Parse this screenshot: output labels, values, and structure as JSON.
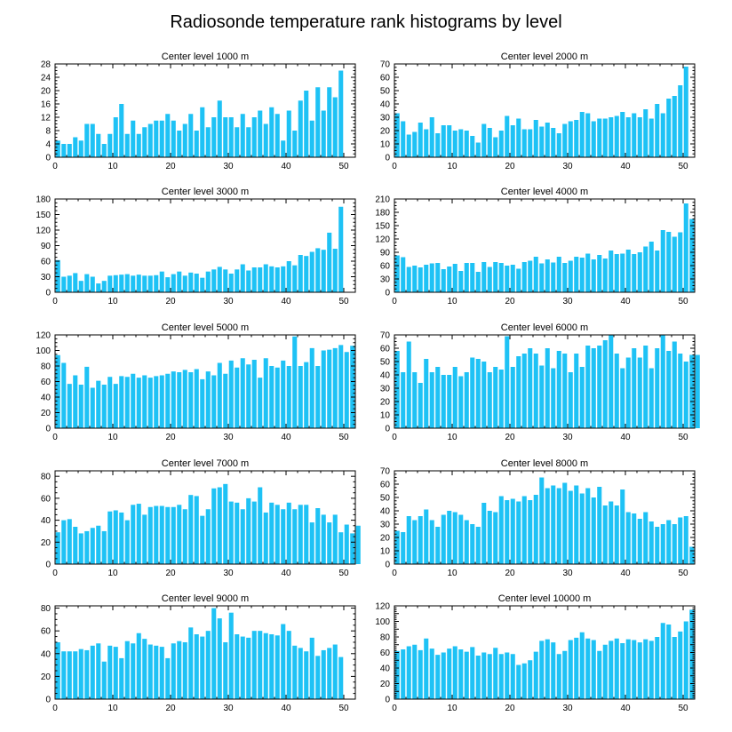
{
  "title": "Radiosonde temperature rank histograms by level",
  "colors": {
    "bar": "#1ec2f5",
    "axis": "#000000"
  },
  "chart_data": [
    {
      "type": "bar",
      "title": "Center level 1000 m",
      "xlim": [
        0,
        52
      ],
      "ylim": [
        0,
        28
      ],
      "xticks": [
        0,
        10,
        20,
        30,
        40,
        50
      ],
      "yticks": [
        0,
        4,
        8,
        12,
        16,
        20,
        24,
        28
      ],
      "values": [
        5,
        4,
        4,
        6,
        5,
        10,
        10,
        7,
        4,
        7,
        12,
        16,
        7,
        11,
        7,
        9,
        10,
        11,
        11,
        13,
        11,
        8,
        10,
        13,
        8,
        15,
        9,
        12,
        17,
        12,
        12,
        9,
        13,
        9,
        12,
        14,
        10,
        15,
        13,
        5,
        14,
        8,
        17,
        20,
        11,
        21,
        14,
        21,
        18,
        26
      ]
    },
    {
      "type": "bar",
      "title": "Center level 2000 m",
      "xlim": [
        0,
        52
      ],
      "ylim": [
        0,
        70
      ],
      "xticks": [
        0,
        10,
        20,
        30,
        40,
        50
      ],
      "yticks": [
        0,
        10,
        20,
        30,
        40,
        50,
        60,
        70
      ],
      "values": [
        33,
        27,
        17,
        19,
        26,
        21,
        30,
        18,
        24,
        24,
        20,
        21,
        20,
        16,
        11,
        25,
        22,
        15,
        20,
        31,
        24,
        29,
        21,
        21,
        28,
        23,
        26,
        22,
        18,
        25,
        27,
        28,
        34,
        33,
        27,
        29,
        29,
        30,
        31,
        34,
        30,
        33,
        30,
        36,
        29,
        40,
        33,
        44,
        46,
        54,
        68
      ]
    },
    {
      "type": "bar",
      "title": "Center level 3000 m",
      "xlim": [
        0,
        52
      ],
      "ylim": [
        0,
        180
      ],
      "xticks": [
        0,
        10,
        20,
        30,
        40,
        50
      ],
      "yticks": [
        0,
        30,
        60,
        90,
        120,
        150,
        180
      ],
      "values": [
        62,
        30,
        32,
        37,
        22,
        35,
        30,
        17,
        22,
        32,
        33,
        34,
        35,
        32,
        34,
        32,
        32,
        33,
        40,
        29,
        35,
        40,
        32,
        38,
        36,
        28,
        40,
        44,
        49,
        44,
        36,
        44,
        54,
        42,
        48,
        48,
        54,
        50,
        48,
        50,
        60,
        52,
        72,
        70,
        78,
        85,
        82,
        115,
        84,
        165
      ]
    },
    {
      "type": "bar",
      "title": "Center level 4000 m",
      "xlim": [
        0,
        52
      ],
      "ylim": [
        0,
        210
      ],
      "xticks": [
        0,
        10,
        20,
        30,
        40,
        50
      ],
      "yticks": [
        0,
        30,
        60,
        90,
        120,
        150,
        180,
        210
      ],
      "values": [
        83,
        79,
        57,
        60,
        56,
        62,
        65,
        66,
        52,
        58,
        64,
        48,
        66,
        66,
        46,
        68,
        57,
        68,
        66,
        60,
        62,
        53,
        68,
        71,
        80,
        65,
        74,
        67,
        80,
        66,
        71,
        80,
        78,
        87,
        74,
        84,
        76,
        94,
        86,
        87,
        96,
        86,
        90,
        103,
        114,
        94,
        140,
        136,
        125,
        135,
        200,
        165
      ]
    },
    {
      "type": "bar",
      "title": "Center level 5000 m",
      "xlim": [
        0,
        52
      ],
      "ylim": [
        0,
        120
      ],
      "xticks": [
        0,
        10,
        20,
        30,
        40,
        50
      ],
      "yticks": [
        0,
        20,
        40,
        60,
        80,
        100,
        120
      ],
      "values": [
        94,
        84,
        57,
        68,
        56,
        79,
        52,
        61,
        56,
        66,
        57,
        67,
        66,
        70,
        65,
        68,
        65,
        67,
        68,
        70,
        73,
        72,
        75,
        72,
        76,
        63,
        73,
        68,
        84,
        70,
        87,
        78,
        90,
        82,
        88,
        65,
        90,
        80,
        78,
        87,
        80,
        118,
        80,
        85,
        103,
        80,
        100,
        101,
        103,
        107,
        98,
        106
      ]
    },
    {
      "type": "bar",
      "title": "Center level 6000 m",
      "xlim": [
        0,
        52
      ],
      "ylim": [
        0,
        70
      ],
      "xticks": [
        0,
        10,
        20,
        30,
        40,
        50
      ],
      "yticks": [
        0,
        10,
        20,
        30,
        40,
        50,
        60,
        70
      ],
      "values": [
        58,
        42,
        65,
        42,
        34,
        52,
        42,
        46,
        40,
        40,
        46,
        39,
        42,
        53,
        52,
        50,
        42,
        46,
        44,
        69,
        46,
        54,
        56,
        60,
        56,
        47,
        60,
        45,
        58,
        56,
        42,
        56,
        46,
        62,
        60,
        62,
        66,
        70,
        56,
        45,
        53,
        60,
        53,
        62,
        45,
        60,
        70,
        58,
        65,
        56,
        50,
        55,
        55
      ]
    },
    {
      "type": "bar",
      "title": "Center level 7000 m",
      "xlim": [
        0,
        52
      ],
      "ylim": [
        0,
        85
      ],
      "xticks": [
        0,
        10,
        20,
        30,
        40,
        50
      ],
      "yticks": [
        0,
        20,
        40,
        60,
        80
      ],
      "values": [
        29,
        40,
        41,
        34,
        28,
        30,
        33,
        35,
        30,
        48,
        49,
        47,
        40,
        54,
        55,
        45,
        52,
        53,
        53,
        52,
        52,
        54,
        50,
        63,
        62,
        44,
        50,
        69,
        70,
        73,
        57,
        56,
        50,
        60,
        57,
        70,
        47,
        56,
        54,
        50,
        56,
        50,
        54,
        54,
        38,
        51,
        45,
        38,
        45,
        29,
        36,
        28,
        35
      ]
    },
    {
      "type": "bar",
      "title": "Center level 8000 m",
      "xlim": [
        0,
        52
      ],
      "ylim": [
        0,
        70
      ],
      "xticks": [
        0,
        10,
        20,
        30,
        40,
        50
      ],
      "yticks": [
        0,
        10,
        20,
        30,
        40,
        50,
        60,
        70
      ],
      "values": [
        25,
        24,
        36,
        33,
        36,
        41,
        33,
        28,
        37,
        40,
        39,
        37,
        33,
        30,
        28,
        46,
        40,
        39,
        51,
        48,
        49,
        47,
        51,
        48,
        52,
        65,
        57,
        59,
        57,
        61,
        55,
        59,
        53,
        57,
        50,
        58,
        44,
        47,
        44,
        56,
        39,
        38,
        34,
        39,
        32,
        28,
        30,
        33,
        30,
        35,
        36,
        13
      ]
    },
    {
      "type": "bar",
      "title": "Center level 9000 m",
      "xlim": [
        0,
        52
      ],
      "ylim": [
        0,
        82
      ],
      "xticks": [
        0,
        10,
        20,
        30,
        40,
        50
      ],
      "yticks": [
        0,
        20,
        40,
        60,
        80
      ],
      "values": [
        50,
        42,
        42,
        42,
        44,
        43,
        47,
        49,
        33,
        47,
        46,
        36,
        51,
        49,
        58,
        53,
        48,
        47,
        46,
        36,
        49,
        51,
        50,
        63,
        57,
        55,
        60,
        80,
        71,
        50,
        76,
        57,
        55,
        54,
        60,
        60,
        58,
        57,
        56,
        66,
        60,
        47,
        45,
        42,
        54,
        38,
        43,
        45,
        48,
        37
      ]
    },
    {
      "type": "bar",
      "title": "Center level 10000 m",
      "xlim": [
        0,
        52
      ],
      "ylim": [
        0,
        120
      ],
      "xticks": [
        0,
        10,
        20,
        30,
        40,
        50
      ],
      "yticks": [
        0,
        10,
        20,
        30,
        40,
        50,
        60,
        70,
        80,
        90,
        100,
        110,
        120
      ],
      "yticklabels_every": 2,
      "values": [
        62,
        64,
        68,
        70,
        63,
        78,
        65,
        57,
        60,
        65,
        68,
        64,
        61,
        67,
        56,
        60,
        58,
        66,
        58,
        60,
        58,
        44,
        46,
        50,
        61,
        75,
        77,
        73,
        58,
        62,
        76,
        79,
        86,
        78,
        76,
        62,
        70,
        75,
        78,
        72,
        77,
        76,
        73,
        77,
        75,
        80,
        98,
        96,
        80,
        87,
        100,
        115
      ]
    }
  ]
}
